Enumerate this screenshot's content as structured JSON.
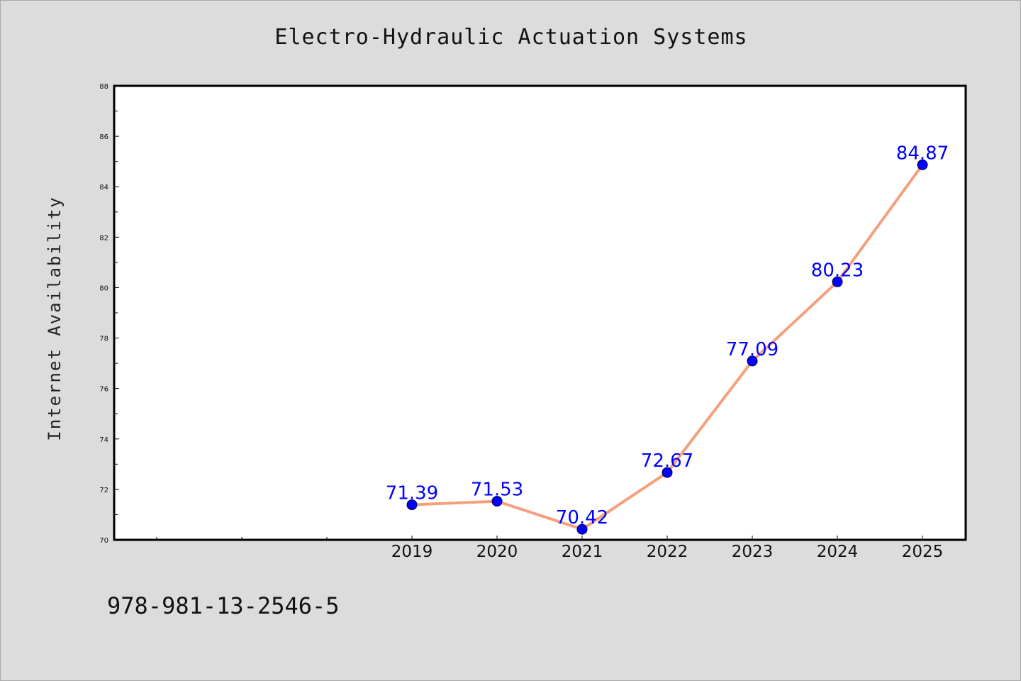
{
  "chart_data": {
    "type": "line",
    "title": "Electro-Hydraulic Actuation Systems",
    "xlabel": "",
    "ylabel": "Internet Availability",
    "categories": [
      "2019",
      "2020",
      "2021",
      "2022",
      "2023",
      "2024",
      "2025"
    ],
    "series": [
      {
        "values": [
          71.39,
          71.53,
          70.42,
          72.67,
          77.09,
          80.23,
          84.87
        ],
        "labels": [
          "71.39",
          "71.53",
          "70.42",
          "72.67",
          "77.09",
          "80.23",
          "84.87"
        ]
      }
    ],
    "ylim": [
      70,
      88
    ],
    "yticks": [
      "70",
      "72",
      "74",
      "76",
      "78",
      "80",
      "82",
      "84",
      "86",
      "88"
    ],
    "grid": false,
    "line_color": "#f4a07c",
    "marker_color": "#0000ff",
    "label_color": "#0000ff"
  },
  "footnote": "978-981-13-2546-5"
}
